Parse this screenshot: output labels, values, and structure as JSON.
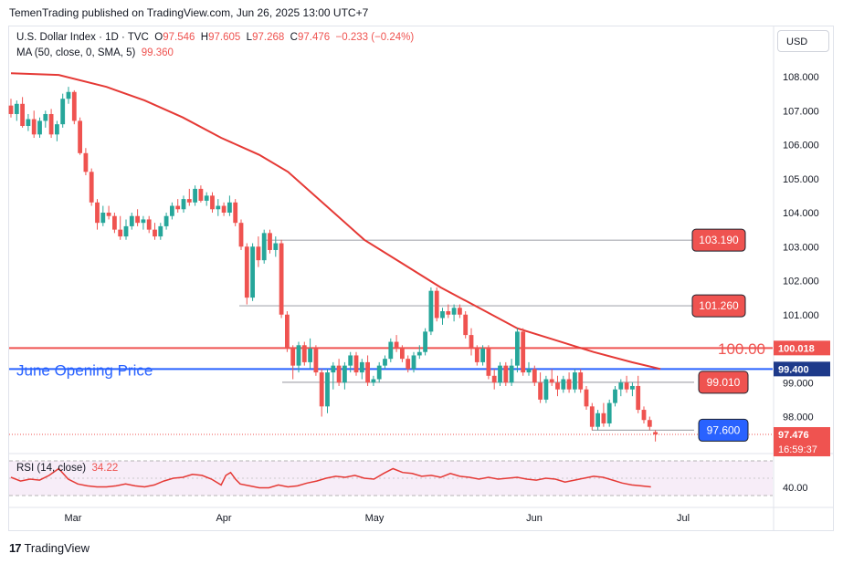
{
  "header": {
    "published": "TemenTrading published on TradingView.com, Jun 26, 2025 13:00 UTC+7"
  },
  "legend": {
    "symbol": "U.S. Dollar Index · 1D · TVC",
    "o_label": "O",
    "o": "97.546",
    "h_label": "H",
    "h": "97.605",
    "l_label": "L",
    "l": "97.268",
    "c_label": "C",
    "c": "97.476",
    "change": "−0.233 (−0.24%)",
    "ma_label": "MA (50, close, 0, SMA, 5)",
    "ma_value": "99.360"
  },
  "currency_button": "USD",
  "rsi": {
    "label": "RSI (14, close)",
    "value": "34.22",
    "axis_label": "40.00"
  },
  "footer": {
    "brand": "TradingView"
  },
  "colors": {
    "up": "#26a69a",
    "down": "#ef5350",
    "ma": "#e53935",
    "blue": "#2962ff",
    "rsi_fill": "#f3e5f5"
  },
  "chart_data": {
    "type": "candlestick",
    "y_ticks": [
      "108.000",
      "107.000",
      "106.000",
      "105.000",
      "104.000",
      "103.000",
      "102.000",
      "101.000",
      "100.000",
      "99.000",
      "98.000"
    ],
    "x_ticks": [
      "Mar",
      "Apr",
      "May",
      "Jun",
      "Jul"
    ],
    "ylim": [
      97.2,
      108.8
    ],
    "last_price": "97.476",
    "countdown": "16:59:37",
    "ma_price_label": "99.360",
    "annotations": [
      {
        "label": "103.190",
        "value": 103.19
      },
      {
        "label": "101.260",
        "value": 101.26
      },
      {
        "label": "100.00",
        "value": 100.0
      },
      {
        "label": "99.010",
        "value": 99.01
      },
      {
        "label": "97.600",
        "value": 97.6
      }
    ],
    "horizontal_lines": [
      {
        "label": "100.018",
        "value": 100.018,
        "style": "solid",
        "color": "#ef5350"
      },
      {
        "label": "June Opening Price",
        "price_label": "99.400",
        "value": 99.4,
        "style": "solid",
        "color": "#2962ff"
      }
    ],
    "candles": [
      [
        107.15,
        107.35,
        106.8,
        106.9
      ],
      [
        106.9,
        107.3,
        106.7,
        107.2
      ],
      [
        107.2,
        107.4,
        106.5,
        106.55
      ],
      [
        106.55,
        106.9,
        106.4,
        106.75
      ],
      [
        106.75,
        107.0,
        106.2,
        106.3
      ],
      [
        106.3,
        106.8,
        106.2,
        106.7
      ],
      [
        106.7,
        107.0,
        106.5,
        106.9
      ],
      [
        106.9,
        107.05,
        106.2,
        106.3
      ],
      [
        106.3,
        106.7,
        106.1,
        106.6
      ],
      [
        106.6,
        107.5,
        106.5,
        107.35
      ],
      [
        107.35,
        107.7,
        107.2,
        107.55
      ],
      [
        107.55,
        107.6,
        106.6,
        106.7
      ],
      [
        106.7,
        106.8,
        105.7,
        105.75
      ],
      [
        105.75,
        105.9,
        105.1,
        105.2
      ],
      [
        105.2,
        105.3,
        104.2,
        104.3
      ],
      [
        104.3,
        104.4,
        103.5,
        103.7
      ],
      [
        103.7,
        104.2,
        103.6,
        104.0
      ],
      [
        104.0,
        104.2,
        103.8,
        103.9
      ],
      [
        103.9,
        104.0,
        103.4,
        103.5
      ],
      [
        103.5,
        103.9,
        103.2,
        103.3
      ],
      [
        103.3,
        103.8,
        103.2,
        103.6
      ],
      [
        103.6,
        104.0,
        103.5,
        103.9
      ],
      [
        103.9,
        104.1,
        103.6,
        103.7
      ],
      [
        103.7,
        103.9,
        103.5,
        103.8
      ],
      [
        103.8,
        103.9,
        103.4,
        103.5
      ],
      [
        103.5,
        103.7,
        103.2,
        103.3
      ],
      [
        103.3,
        103.7,
        103.2,
        103.6
      ],
      [
        103.6,
        104.0,
        103.5,
        103.9
      ],
      [
        103.9,
        104.3,
        103.8,
        104.2
      ],
      [
        104.2,
        104.4,
        104.0,
        104.1
      ],
      [
        104.1,
        104.5,
        104.0,
        104.4
      ],
      [
        104.4,
        104.7,
        104.2,
        104.3
      ],
      [
        104.3,
        104.8,
        104.2,
        104.7
      ],
      [
        104.7,
        104.8,
        104.3,
        104.35
      ],
      [
        104.35,
        104.6,
        104.2,
        104.5
      ],
      [
        104.5,
        104.6,
        104.0,
        104.1
      ],
      [
        104.1,
        104.4,
        103.9,
        104.2
      ],
      [
        104.2,
        104.3,
        103.9,
        104.0
      ],
      [
        104.0,
        104.5,
        103.9,
        104.3
      ],
      [
        104.3,
        104.4,
        103.6,
        103.7
      ],
      [
        103.7,
        103.8,
        102.9,
        103.0
      ],
      [
        103.0,
        103.1,
        101.3,
        101.5
      ],
      [
        101.5,
        103.1,
        101.4,
        103.0
      ],
      [
        103.0,
        103.3,
        102.4,
        102.6
      ],
      [
        102.6,
        103.5,
        102.5,
        103.4
      ],
      [
        103.4,
        103.5,
        102.8,
        102.9
      ],
      [
        102.9,
        103.3,
        102.7,
        103.1
      ],
      [
        103.1,
        103.2,
        100.9,
        101.0
      ],
      [
        101.0,
        101.1,
        99.9,
        100.0
      ],
      [
        100.0,
        100.1,
        99.1,
        99.5
      ],
      [
        99.5,
        100.2,
        99.3,
        100.1
      ],
      [
        100.1,
        100.2,
        99.5,
        99.6
      ],
      [
        99.6,
        100.3,
        99.4,
        100.0
      ],
      [
        100.0,
        100.1,
        99.2,
        99.3
      ],
      [
        99.3,
        99.4,
        98.0,
        98.3
      ],
      [
        98.3,
        99.4,
        98.1,
        99.3
      ],
      [
        99.3,
        99.6,
        98.8,
        99.5
      ],
      [
        99.5,
        99.7,
        98.9,
        99.0
      ],
      [
        99.0,
        99.6,
        98.8,
        99.5
      ],
      [
        99.5,
        99.9,
        99.3,
        99.8
      ],
      [
        99.8,
        99.9,
        99.2,
        99.3
      ],
      [
        99.3,
        99.7,
        99.1,
        99.6
      ],
      [
        99.6,
        99.8,
        98.9,
        99.0
      ],
      [
        99.0,
        99.2,
        98.9,
        99.1
      ],
      [
        99.1,
        99.6,
        99.0,
        99.5
      ],
      [
        99.5,
        99.8,
        99.4,
        99.7
      ],
      [
        99.7,
        100.3,
        99.6,
        100.2
      ],
      [
        100.2,
        100.4,
        99.9,
        100.0
      ],
      [
        100.0,
        100.1,
        99.6,
        99.7
      ],
      [
        99.7,
        99.8,
        99.3,
        99.4
      ],
      [
        99.4,
        99.9,
        99.3,
        99.8
      ],
      [
        99.8,
        100.1,
        99.7,
        99.9
      ],
      [
        99.9,
        100.6,
        99.8,
        100.5
      ],
      [
        100.5,
        101.8,
        100.4,
        101.7
      ],
      [
        101.7,
        101.8,
        100.8,
        100.9
      ],
      [
        100.9,
        101.2,
        100.7,
        101.1
      ],
      [
        101.1,
        101.3,
        100.9,
        101.0
      ],
      [
        101.0,
        101.3,
        100.8,
        101.2
      ],
      [
        101.2,
        101.3,
        100.9,
        101.0
      ],
      [
        101.0,
        101.1,
        100.3,
        100.4
      ],
      [
        100.4,
        100.6,
        99.8,
        100.0
      ],
      [
        100.0,
        100.1,
        99.5,
        99.6
      ],
      [
        99.6,
        100.1,
        99.5,
        100.0
      ],
      [
        100.0,
        100.1,
        99.1,
        99.2
      ],
      [
        99.2,
        99.4,
        98.8,
        99.0
      ],
      [
        99.0,
        99.6,
        98.9,
        99.5
      ],
      [
        99.5,
        99.6,
        98.9,
        99.0
      ],
      [
        99.0,
        99.7,
        98.9,
        99.5
      ],
      [
        99.5,
        100.6,
        99.3,
        100.5
      ],
      [
        100.5,
        100.6,
        99.2,
        99.3
      ],
      [
        99.3,
        99.6,
        99.2,
        99.4
      ],
      [
        99.4,
        99.5,
        98.9,
        99.0
      ],
      [
        99.0,
        99.3,
        98.4,
        98.5
      ],
      [
        98.5,
        99.2,
        98.4,
        99.1
      ],
      [
        99.1,
        99.4,
        98.9,
        99.0
      ],
      [
        99.0,
        99.2,
        98.6,
        98.8
      ],
      [
        98.8,
        99.2,
        98.7,
        99.1
      ],
      [
        99.1,
        99.3,
        98.7,
        98.8
      ],
      [
        98.8,
        99.4,
        98.7,
        99.3
      ],
      [
        99.3,
        99.4,
        98.7,
        98.8
      ],
      [
        98.8,
        98.9,
        98.2,
        98.3
      ],
      [
        98.3,
        98.4,
        97.6,
        97.7
      ],
      [
        97.7,
        98.2,
        97.6,
        98.1
      ],
      [
        98.1,
        98.4,
        97.7,
        97.8
      ],
      [
        97.8,
        98.5,
        97.7,
        98.4
      ],
      [
        98.4,
        98.9,
        98.3,
        98.8
      ],
      [
        98.8,
        99.1,
        98.6,
        99.0
      ],
      [
        99.0,
        99.2,
        98.7,
        98.8
      ],
      [
        98.8,
        99.0,
        98.6,
        98.9
      ],
      [
        98.9,
        99.2,
        98.1,
        98.2
      ],
      [
        98.2,
        98.3,
        97.8,
        97.9
      ],
      [
        97.9,
        98.0,
        97.6,
        97.7
      ],
      [
        97.546,
        97.605,
        97.268,
        97.476
      ]
    ],
    "ma_points": [
      [
        0,
        108.1
      ],
      [
        10,
        108.05
      ],
      [
        20,
        107.7
      ],
      [
        28,
        107.3
      ],
      [
        36,
        106.8
      ],
      [
        44,
        106.2
      ],
      [
        52,
        105.7
      ],
      [
        58,
        105.2
      ],
      [
        66,
        104.2
      ],
      [
        74,
        103.2
      ],
      [
        82,
        102.5
      ],
      [
        90,
        101.8
      ],
      [
        98,
        101.2
      ],
      [
        106,
        100.6
      ],
      [
        114,
        100.25
      ],
      [
        122,
        99.9
      ],
      [
        130,
        99.6
      ],
      [
        136,
        99.4
      ]
    ],
    "rsi_points": [
      [
        0,
        46
      ],
      [
        2,
        42
      ],
      [
        4,
        44
      ],
      [
        6,
        43
      ],
      [
        8,
        48
      ],
      [
        10,
        55
      ],
      [
        12,
        44
      ],
      [
        14,
        39
      ],
      [
        16,
        37
      ],
      [
        18,
        36
      ],
      [
        20,
        36
      ],
      [
        22,
        37
      ],
      [
        24,
        39
      ],
      [
        26,
        37
      ],
      [
        28,
        36
      ],
      [
        30,
        38
      ],
      [
        32,
        42
      ],
      [
        34,
        45
      ],
      [
        36,
        46
      ],
      [
        38,
        49
      ],
      [
        40,
        48
      ],
      [
        42,
        44
      ],
      [
        44,
        38
      ],
      [
        45,
        48
      ],
      [
        46,
        51
      ],
      [
        47,
        44
      ],
      [
        48,
        39
      ],
      [
        50,
        37
      ],
      [
        52,
        35
      ],
      [
        54,
        35
      ],
      [
        56,
        38
      ],
      [
        58,
        36
      ],
      [
        60,
        37
      ],
      [
        62,
        40
      ],
      [
        64,
        42
      ],
      [
        66,
        45
      ],
      [
        68,
        47
      ],
      [
        70,
        46
      ],
      [
        72,
        48
      ],
      [
        74,
        45
      ],
      [
        76,
        44
      ],
      [
        78,
        50
      ],
      [
        80,
        55
      ],
      [
        82,
        51
      ],
      [
        84,
        50
      ],
      [
        86,
        47
      ],
      [
        88,
        48
      ],
      [
        90,
        46
      ],
      [
        92,
        50
      ],
      [
        94,
        47
      ],
      [
        96,
        46
      ],
      [
        98,
        44
      ],
      [
        100,
        46
      ],
      [
        102,
        44
      ],
      [
        104,
        45
      ],
      [
        106,
        46
      ],
      [
        108,
        44
      ],
      [
        110,
        43
      ],
      [
        112,
        45
      ],
      [
        114,
        44
      ],
      [
        116,
        41
      ],
      [
        118,
        43
      ],
      [
        120,
        45
      ],
      [
        122,
        47
      ],
      [
        124,
        46
      ],
      [
        126,
        43
      ],
      [
        128,
        40
      ],
      [
        130,
        38
      ],
      [
        132,
        37
      ],
      [
        134,
        36
      ]
    ],
    "x_domain": [
      0,
      155
    ]
  }
}
